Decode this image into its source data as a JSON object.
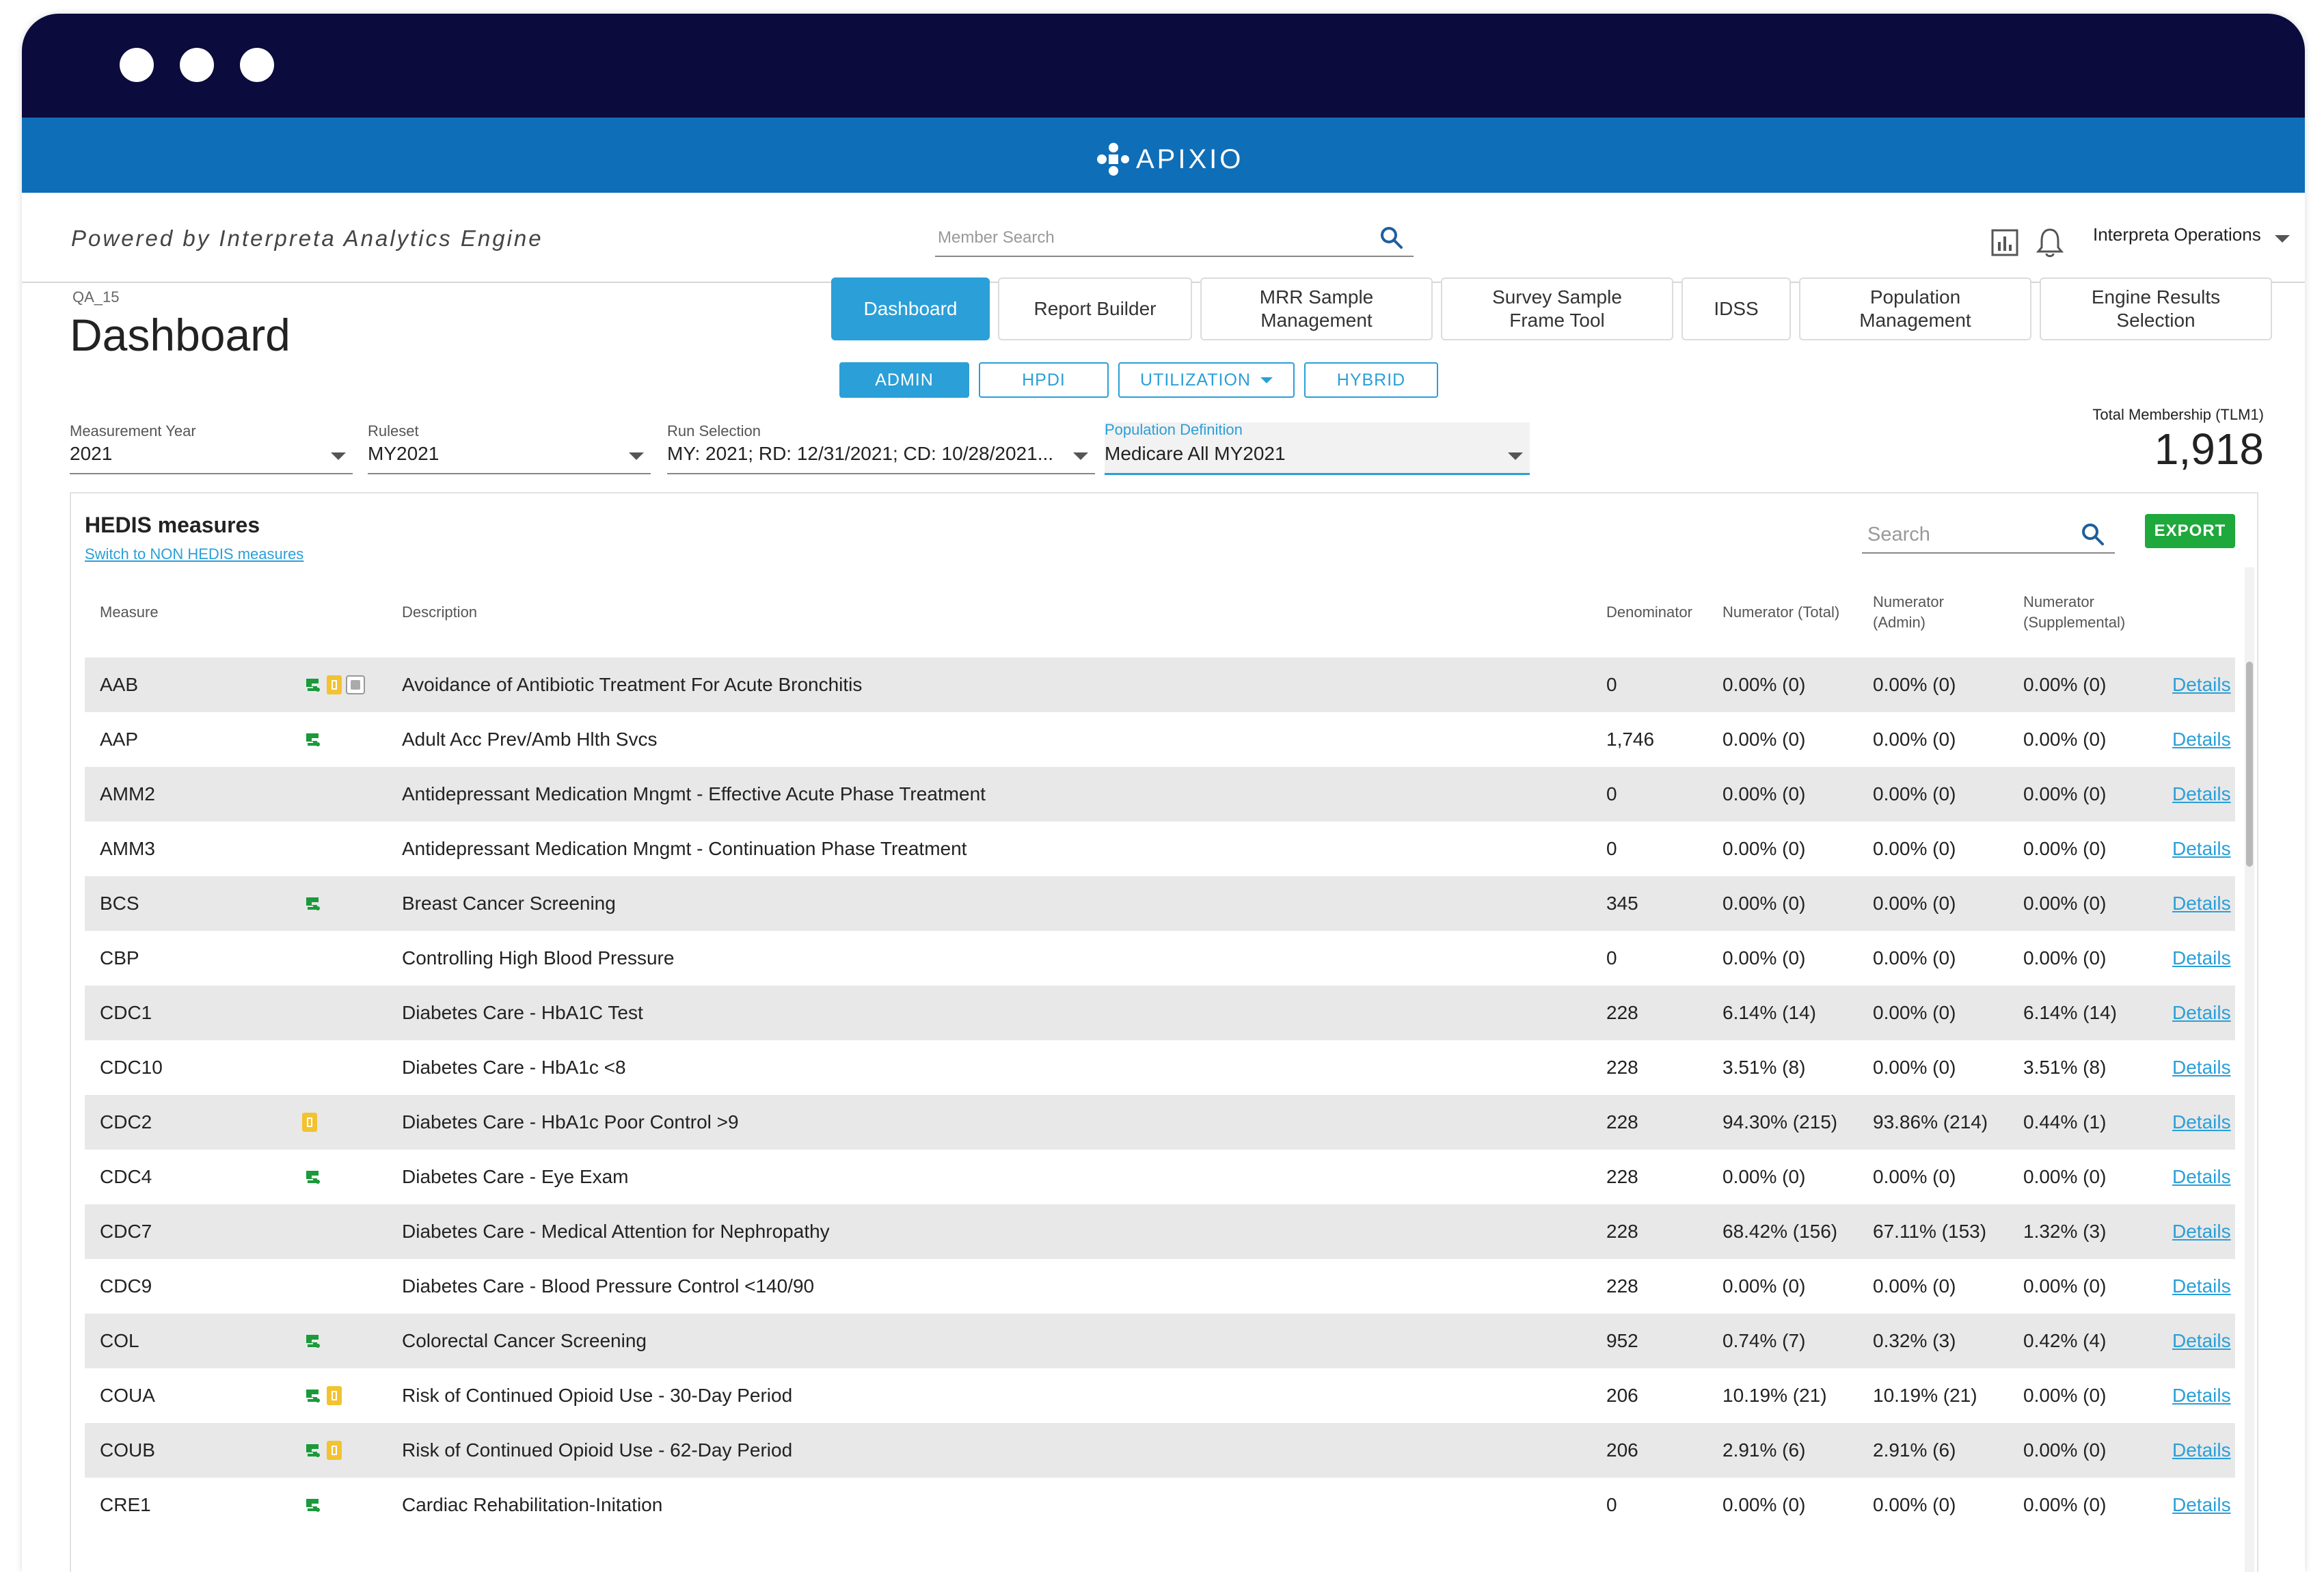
{
  "app": {
    "brand": "APIXIO",
    "powered_by": "Powered by Interpreta Analytics Engine"
  },
  "header": {
    "member_search_placeholder": "Member Search",
    "user": "Interpreta Operations"
  },
  "page": {
    "context": "QA_15",
    "title": "Dashboard"
  },
  "nav_tabs": [
    {
      "label": "Dashboard",
      "active": true
    },
    {
      "label": "Report Builder"
    },
    {
      "label": "MRR Sample Management"
    },
    {
      "label": "Survey Sample Frame Tool"
    },
    {
      "label": "IDSS"
    },
    {
      "label": "Population Management"
    },
    {
      "label": "Engine Results Selection"
    }
  ],
  "sub_tabs": [
    {
      "label": "ADMIN",
      "active": true
    },
    {
      "label": "HPDI"
    },
    {
      "label": "UTILIZATION"
    },
    {
      "label": "HYBRID"
    }
  ],
  "filters": {
    "measurement_year": {
      "label": "Measurement Year",
      "value": "2021"
    },
    "ruleset": {
      "label": "Ruleset",
      "value": "MY2021"
    },
    "run_selection": {
      "label": "Run Selection",
      "value": "MY: 2021; RD: 12/31/2021; CD: 10/28/2021..."
    },
    "population_definition": {
      "label": "Population Definition",
      "value": "Medicare All MY2021"
    }
  },
  "membership": {
    "label": "Total Membership (TLM1)",
    "value": "1,918"
  },
  "table": {
    "title": "HEDIS measures",
    "switch_link": "Switch to NON HEDIS measures",
    "search_placeholder": "Search",
    "export_label": "EXPORT",
    "headers": {
      "measure": "Measure",
      "description": "Description",
      "denominator": "Denominator",
      "num_total": "Numerator (Total)",
      "num_admin": "Numerator (Admin)",
      "num_supp": "Numerator (Supplemental)"
    },
    "details_label": "Details",
    "rows": [
      {
        "measure": "AAB",
        "badges": [
          "green",
          "yellow",
          "gray"
        ],
        "description": "Avoidance of Antibiotic Treatment For Acute Bronchitis",
        "denominator": "0",
        "total": "0.00% (0)",
        "admin": "0.00% (0)",
        "supp": "0.00% (0)"
      },
      {
        "measure": "AAP",
        "badges": [
          "green"
        ],
        "description": "Adult Acc Prev/Amb Hlth Svcs",
        "denominator": "1,746",
        "total": "0.00% (0)",
        "admin": "0.00% (0)",
        "supp": "0.00% (0)"
      },
      {
        "measure": "AMM2",
        "badges": [],
        "description": "Antidepressant Medication Mngmt - Effective Acute Phase Treatment",
        "denominator": "0",
        "total": "0.00% (0)",
        "admin": "0.00% (0)",
        "supp": "0.00% (0)"
      },
      {
        "measure": "AMM3",
        "badges": [],
        "description": "Antidepressant Medication Mngmt - Continuation Phase Treatment",
        "denominator": "0",
        "total": "0.00% (0)",
        "admin": "0.00% (0)",
        "supp": "0.00% (0)"
      },
      {
        "measure": "BCS",
        "badges": [
          "green"
        ],
        "description": "Breast Cancer Screening",
        "denominator": "345",
        "total": "0.00% (0)",
        "admin": "0.00% (0)",
        "supp": "0.00% (0)"
      },
      {
        "measure": "CBP",
        "badges": [],
        "description": "Controlling High Blood Pressure",
        "denominator": "0",
        "total": "0.00% (0)",
        "admin": "0.00% (0)",
        "supp": "0.00% (0)"
      },
      {
        "measure": "CDC1",
        "badges": [],
        "description": "Diabetes Care - HbA1C Test",
        "denominator": "228",
        "total": "6.14% (14)",
        "admin": "0.00% (0)",
        "supp": "6.14% (14)"
      },
      {
        "measure": "CDC10",
        "badges": [],
        "description": "Diabetes Care - HbA1c <8",
        "denominator": "228",
        "total": "3.51% (8)",
        "admin": "0.00% (0)",
        "supp": "3.51% (8)"
      },
      {
        "measure": "CDC2",
        "badges": [
          "yellow"
        ],
        "description": "Diabetes Care - HbA1c Poor Control >9",
        "denominator": "228",
        "total": "94.30% (215)",
        "admin": "93.86% (214)",
        "supp": "0.44% (1)"
      },
      {
        "measure": "CDC4",
        "badges": [
          "green"
        ],
        "description": "Diabetes Care - Eye Exam",
        "denominator": "228",
        "total": "0.00% (0)",
        "admin": "0.00% (0)",
        "supp": "0.00% (0)"
      },
      {
        "measure": "CDC7",
        "badges": [],
        "description": "Diabetes Care - Medical Attention for Nephropathy",
        "denominator": "228",
        "total": "68.42% (156)",
        "admin": "67.11% (153)",
        "supp": "1.32% (3)"
      },
      {
        "measure": "CDC9",
        "badges": [],
        "description": "Diabetes Care - Blood Pressure Control <140/90",
        "denominator": "228",
        "total": "0.00% (0)",
        "admin": "0.00% (0)",
        "supp": "0.00% (0)"
      },
      {
        "measure": "COL",
        "badges": [
          "green"
        ],
        "description": "Colorectal Cancer Screening",
        "denominator": "952",
        "total": "0.74% (7)",
        "admin": "0.32% (3)",
        "supp": "0.42% (4)"
      },
      {
        "measure": "COUA",
        "badges": [
          "green",
          "yellow"
        ],
        "description": "Risk of Continued Opioid Use - 30-Day Period",
        "denominator": "206",
        "total": "10.19% (21)",
        "admin": "10.19% (21)",
        "supp": "0.00% (0)"
      },
      {
        "measure": "COUB",
        "badges": [
          "green",
          "yellow"
        ],
        "description": "Risk of Continued Opioid Use - 62-Day Period",
        "denominator": "206",
        "total": "2.91% (6)",
        "admin": "2.91% (6)",
        "supp": "0.00% (0)"
      },
      {
        "measure": "CRE1",
        "badges": [
          "green"
        ],
        "description": "Cardiac Rehabilitation-Initation",
        "denominator": "0",
        "total": "0.00% (0)",
        "admin": "0.00% (0)",
        "supp": "0.00% (0)"
      }
    ]
  },
  "colors": {
    "titlebar": "#0b0b3d",
    "brandbar": "#0f6eb8",
    "accent": "#2a9fd8",
    "export": "#1fa83c",
    "badge_green": "#1a9a3a",
    "badge_yellow": "#f2c230"
  },
  "icons": {
    "search": "search-icon",
    "chart": "bar-chart-icon",
    "bell": "bell-icon"
  }
}
